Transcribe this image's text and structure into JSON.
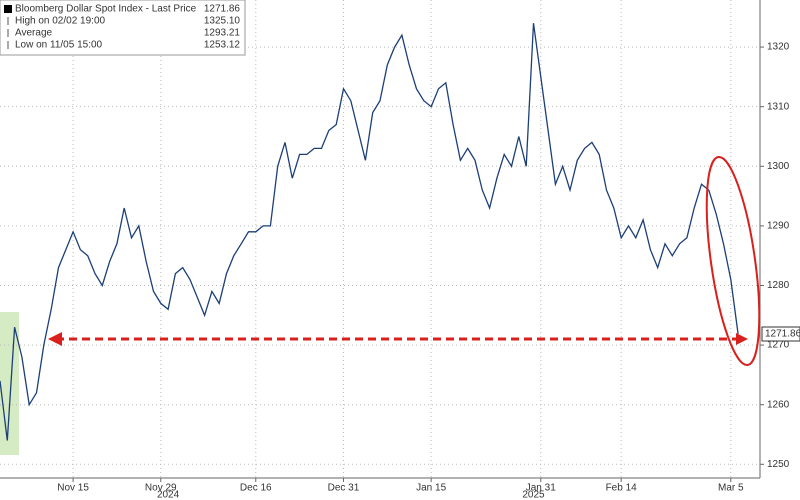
{
  "chart_data": {
    "type": "line",
    "legend_items": [
      {
        "label": "Bloomberg Dollar Spot Index - Last Price",
        "value": 1271.86,
        "value_label": "1271.86"
      },
      {
        "label": "High on 02/02 19:00",
        "value": 1325.1,
        "value_label": "1325.10"
      },
      {
        "label": "Average",
        "value": 1293.21,
        "value_label": "1293.21"
      },
      {
        "label": "Low on 11/05 15:00",
        "value": 1253.12,
        "value_label": "1253.12"
      }
    ],
    "series": [
      {
        "name": "Bloomberg Dollar Spot Index - Last Price",
        "color": "#1c3f78",
        "values": [
          1264,
          1254,
          1273,
          1268,
          1260,
          1262,
          1270,
          1276,
          1283,
          1286,
          1289,
          1286,
          1285,
          1282,
          1280,
          1284,
          1287,
          1293,
          1288,
          1290,
          1284,
          1279,
          1277,
          1276,
          1282,
          1283,
          1281,
          1278,
          1275,
          1279,
          1277,
          1282,
          1285,
          1287,
          1289,
          1289,
          1290,
          1290,
          1300,
          1304,
          1298,
          1302,
          1302,
          1303,
          1303,
          1306,
          1307,
          1313,
          1311,
          1306,
          1301,
          1309,
          1311,
          1317,
          1320,
          1322,
          1317,
          1313,
          1311,
          1310,
          1313,
          1314,
          1307,
          1301,
          1303,
          1301,
          1296,
          1293,
          1298,
          1302,
          1300,
          1305,
          1300,
          1324,
          1315,
          1306,
          1297,
          1300,
          1296,
          1301,
          1303,
          1304,
          1302,
          1296,
          1293,
          1288,
          1290,
          1288,
          1291,
          1286,
          1283,
          1287,
          1285,
          1287,
          1288,
          1293,
          1297,
          1296,
          1292,
          1287,
          1281,
          1271.86
        ],
        "last_label": "1271.86"
      }
    ],
    "xlim": [
      0,
      104
    ],
    "xticks": [
      {
        "value": 10,
        "label": "Nov 15"
      },
      {
        "value": 22,
        "label": "Nov 29"
      },
      {
        "value": 35,
        "label": "Dec 16"
      },
      {
        "value": 47,
        "label": "Dec 31"
      },
      {
        "value": 59,
        "label": "Jan 15"
      },
      {
        "value": 74,
        "label": "Jan 31"
      },
      {
        "value": 85,
        "label": "Feb 14"
      },
      {
        "value": 100,
        "label": "Mar 5"
      }
    ],
    "year_labels": [
      {
        "value": 23,
        "label": "2024"
      },
      {
        "value": 73,
        "label": "2025"
      }
    ],
    "ylim": [
      1247.7,
      1327.9
    ],
    "yticks": [
      1250,
      1260,
      1270,
      1280,
      1290,
      1300,
      1310,
      1320
    ],
    "grid": true
  }
}
